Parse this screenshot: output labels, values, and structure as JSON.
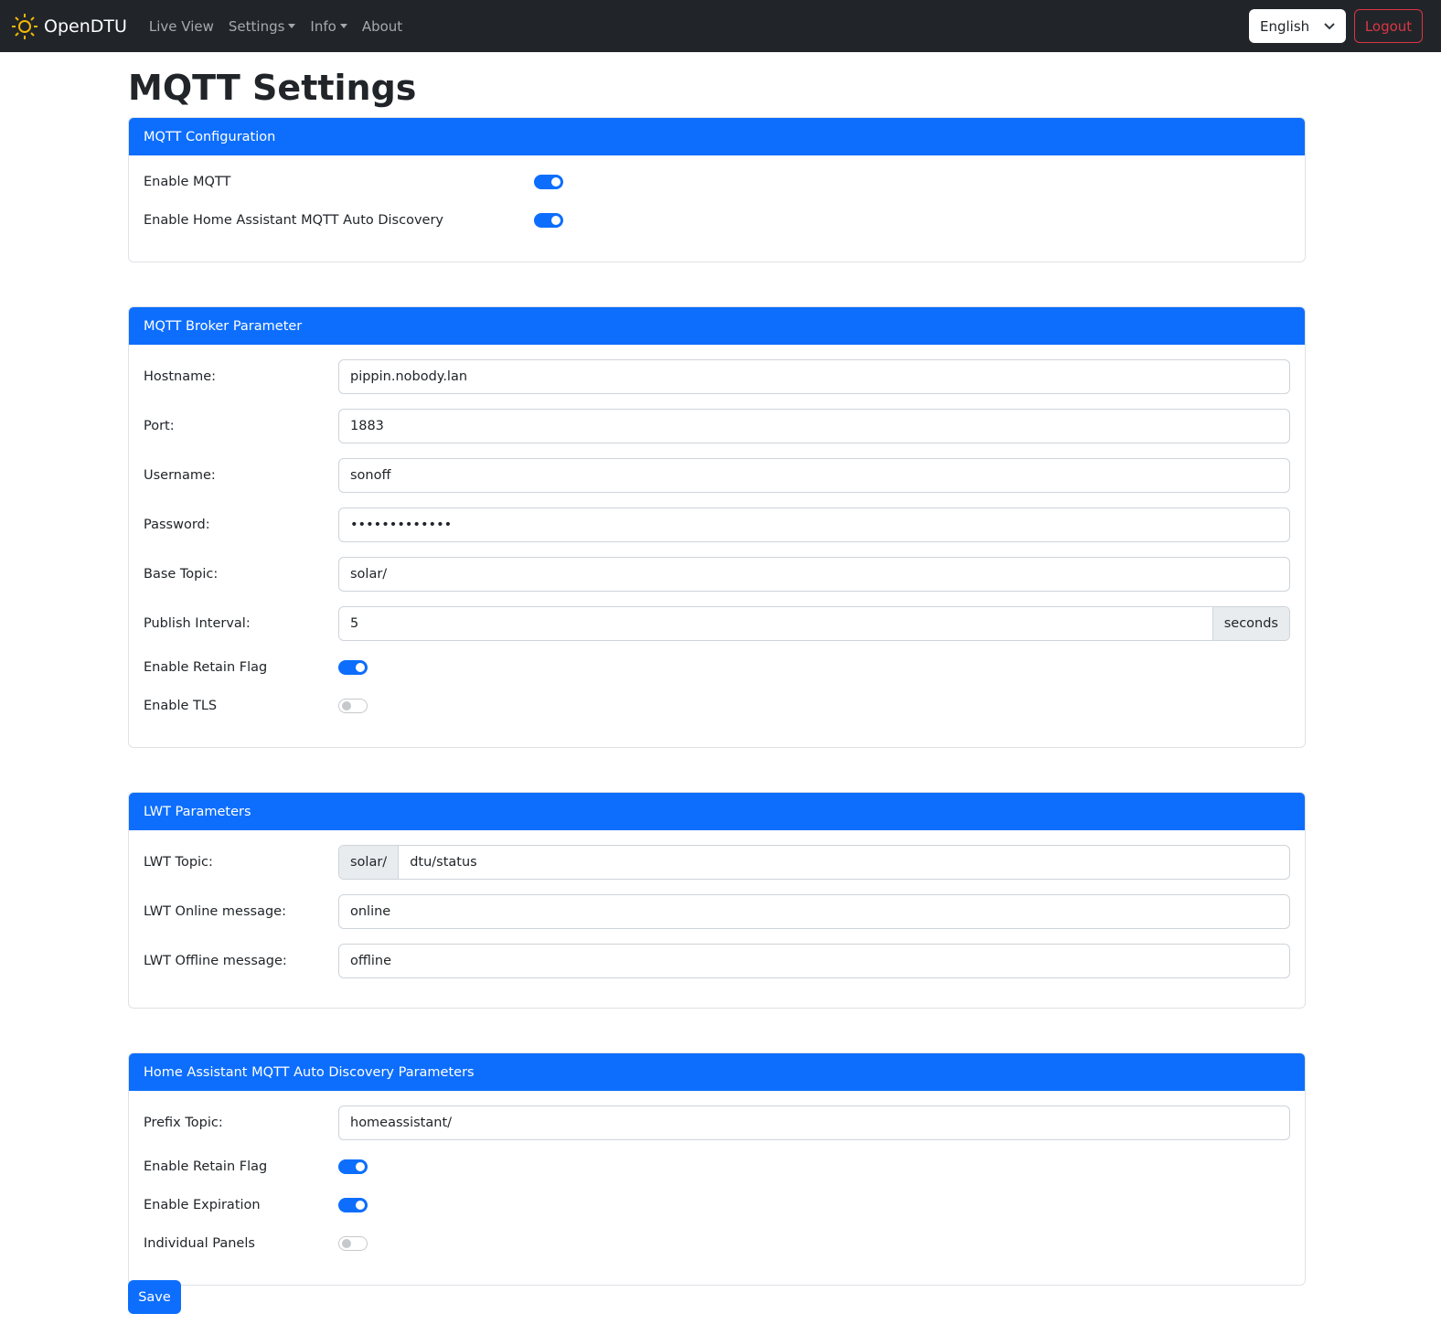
{
  "nav": {
    "brand": "OpenDTU",
    "items": [
      "Live View",
      "Settings",
      "Info",
      "About"
    ],
    "language": "English",
    "logout": "Logout"
  },
  "page_title": "MQTT Settings",
  "mqtt_config": {
    "title": "MQTT Configuration",
    "enable_mqtt": {
      "label": "Enable MQTT",
      "on": true
    },
    "enable_ha": {
      "label": "Enable Home Assistant MQTT Auto Discovery",
      "on": true
    }
  },
  "broker": {
    "title": "MQTT Broker Parameter",
    "hostname": {
      "label": "Hostname:",
      "value": "pippin.nobody.lan"
    },
    "port": {
      "label": "Port:",
      "value": "1883"
    },
    "username": {
      "label": "Username:",
      "value": "sonoff"
    },
    "password": {
      "label": "Password:",
      "value": "•••••••••••••"
    },
    "base_topic": {
      "label": "Base Topic:",
      "value": "solar/"
    },
    "publish_interval": {
      "label": "Publish Interval:",
      "value": "5",
      "unit": "seconds"
    },
    "retain": {
      "label": "Enable Retain Flag",
      "on": true
    },
    "tls": {
      "label": "Enable TLS",
      "on": false
    }
  },
  "lwt": {
    "title": "LWT Parameters",
    "topic": {
      "label": "LWT Topic:",
      "prefix": "solar/",
      "value": "dtu/status"
    },
    "online": {
      "label": "LWT Online message:",
      "value": "online"
    },
    "offline": {
      "label": "LWT Offline message:",
      "value": "offline"
    }
  },
  "ha": {
    "title": "Home Assistant MQTT Auto Discovery Parameters",
    "prefix": {
      "label": "Prefix Topic:",
      "value": "homeassistant/"
    },
    "retain": {
      "label": "Enable Retain Flag",
      "on": true
    },
    "expiration": {
      "label": "Enable Expiration",
      "on": true
    },
    "panels": {
      "label": "Individual Panels",
      "on": false
    }
  },
  "save_label": "Save",
  "colors": {
    "primary": "#0d6efd",
    "navbar": "#212529",
    "danger": "#dc3545",
    "logo": "#f2b705"
  }
}
